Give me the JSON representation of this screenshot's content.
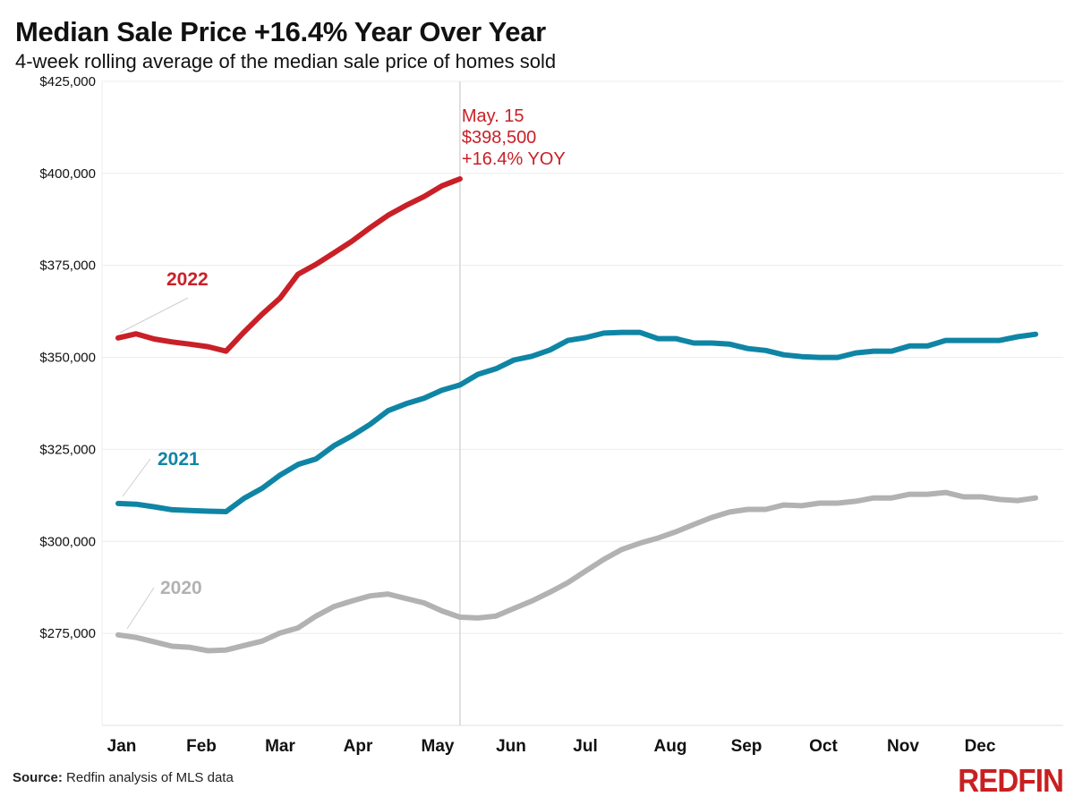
{
  "header": {
    "title": "Median Sale Price +16.4% Year Over Year",
    "subtitle": "4-week rolling average of the median sale price of homes sold"
  },
  "footer": {
    "source_label": "Source:",
    "source_text": "Redfin analysis of MLS data",
    "logo": "REDFIN"
  },
  "colors": {
    "series_2022": "#c92027",
    "series_2021": "#0f85a5",
    "series_2020": "#b2b2b2",
    "gridline": "#ececec",
    "marker_line": "#d6d6d6"
  },
  "chart_data": {
    "type": "line",
    "title": "Median Sale Price +16.4% Year Over Year",
    "subtitle": "4-week rolling average of the median sale price of homes sold",
    "xlabel": "",
    "ylabel": "",
    "x_unit": "week of year",
    "x_ticks": [
      "Jan",
      "Feb",
      "Mar",
      "Apr",
      "May",
      "Jun",
      "Jul",
      "Aug",
      "Sep",
      "Oct",
      "Nov",
      "Dec"
    ],
    "y_ticks": [
      275000,
      300000,
      325000,
      350000,
      375000,
      400000,
      425000
    ],
    "y_tick_labels": [
      "$275,000",
      "$300,000",
      "$325,000",
      "$350,000",
      "$375,000",
      "$400,000",
      "$425,000"
    ],
    "ylim": [
      250000,
      425000
    ],
    "grid": true,
    "legend": "inline labels",
    "series": [
      {
        "name": "2022",
        "values": [
          355300,
          356400,
          355000,
          354200,
          353600,
          352900,
          351700,
          356900,
          361700,
          366100,
          372600,
          375300,
          378400,
          381600,
          385200,
          388600,
          391300,
          393700,
          396600,
          398500
        ]
      },
      {
        "name": "2021",
        "values": [
          310300,
          310100,
          309400,
          308600,
          308400,
          308200,
          308100,
          311700,
          314400,
          318000,
          320900,
          322400,
          326000,
          328700,
          331800,
          335500,
          337400,
          338900,
          341100,
          342500,
          345400,
          346900,
          349300,
          350300,
          352000,
          354600,
          355400,
          356600,
          356800,
          356800,
          355100,
          355100,
          353900,
          353900,
          353600,
          352400,
          351900,
          350700,
          350200,
          350000,
          350000,
          351200,
          351700,
          351700,
          353100,
          353100,
          354600,
          354600,
          354600,
          354600,
          355600,
          356300
        ]
      },
      {
        "name": "2020",
        "values": [
          274600,
          273900,
          272700,
          271500,
          271200,
          270300,
          270500,
          271700,
          272900,
          275100,
          276500,
          279700,
          282300,
          283800,
          285200,
          285700,
          284500,
          283300,
          281100,
          279400,
          279200,
          279700,
          281800,
          283800,
          286200,
          288800,
          292000,
          295100,
          297800,
          299500,
          300900,
          302600,
          304600,
          306500,
          308000,
          308700,
          308700,
          309900,
          309700,
          310400,
          310400,
          310900,
          311800,
          311800,
          312800,
          312800,
          313300,
          312100,
          312100,
          311400,
          311100,
          311800
        ]
      }
    ],
    "annotation": {
      "date": "May. 15",
      "value": "$398,500",
      "change": "+16.4% YOY",
      "week_index": 19
    }
  }
}
